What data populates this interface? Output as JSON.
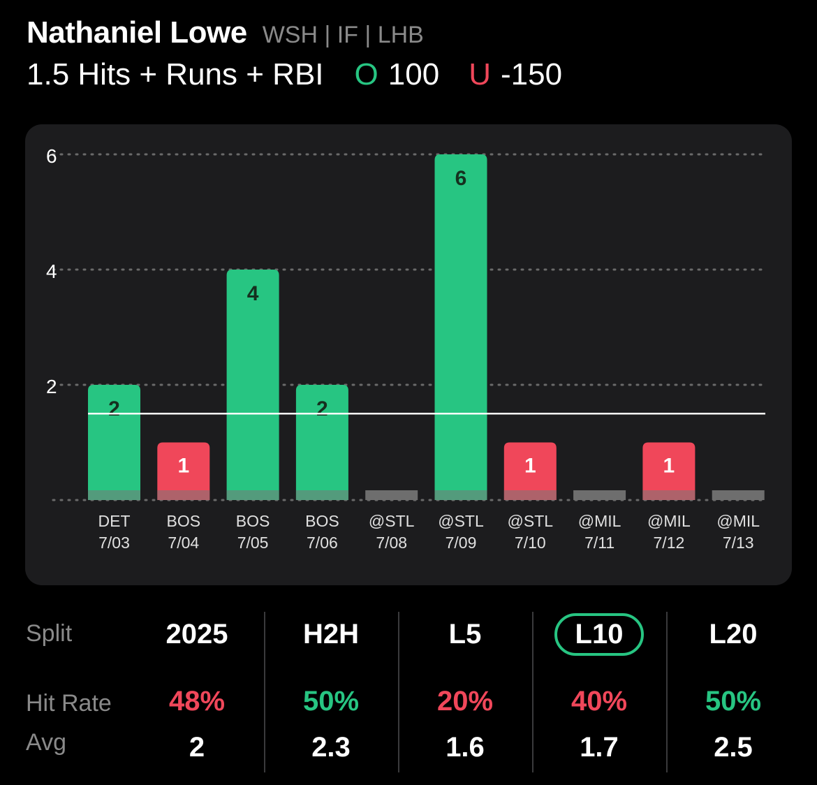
{
  "header": {
    "player_name": "Nathaniel Lowe",
    "meta": "WSH | IF | LHB",
    "prop": "1.5 Hits + Runs + RBI",
    "over_letter": "O",
    "over_value": "100",
    "under_letter": "U",
    "under_value": "-150"
  },
  "colors": {
    "over": "#27c582",
    "under": "#f0475a",
    "neutral": "#6e6e6e",
    "card": "#1c1c1e"
  },
  "chart_data": {
    "type": "bar",
    "categories": [
      [
        "DET",
        "7/03"
      ],
      [
        "BOS",
        "7/04"
      ],
      [
        "BOS",
        "7/05"
      ],
      [
        "BOS",
        "7/06"
      ],
      [
        "@STL",
        "7/08"
      ],
      [
        "@STL",
        "7/09"
      ],
      [
        "@STL",
        "7/10"
      ],
      [
        "@MIL",
        "7/11"
      ],
      [
        "@MIL",
        "7/12"
      ],
      [
        "@MIL",
        "7/13"
      ]
    ],
    "values": [
      2,
      1,
      4,
      2,
      0,
      6,
      1,
      0,
      1,
      0
    ],
    "line": 1.5,
    "yticks": [
      2,
      4,
      6
    ],
    "ylim": [
      0,
      6
    ],
    "grid": true
  },
  "splits": {
    "row_labels": {
      "split": "Split",
      "hit_rate": "Hit Rate",
      "avg": "Avg"
    },
    "columns": [
      {
        "label": "2025",
        "hit_rate": "48%",
        "hit_color": "#f0475a",
        "avg": "2",
        "active": false
      },
      {
        "label": "H2H",
        "hit_rate": "50%",
        "hit_color": "#27c582",
        "avg": "2.3",
        "active": false
      },
      {
        "label": "L5",
        "hit_rate": "20%",
        "hit_color": "#f0475a",
        "avg": "1.6",
        "active": false
      },
      {
        "label": "L10",
        "hit_rate": "40%",
        "hit_color": "#f0475a",
        "avg": "1.7",
        "active": true
      },
      {
        "label": "L20",
        "hit_rate": "50%",
        "hit_color": "#27c582",
        "avg": "2.5",
        "active": false
      }
    ]
  }
}
